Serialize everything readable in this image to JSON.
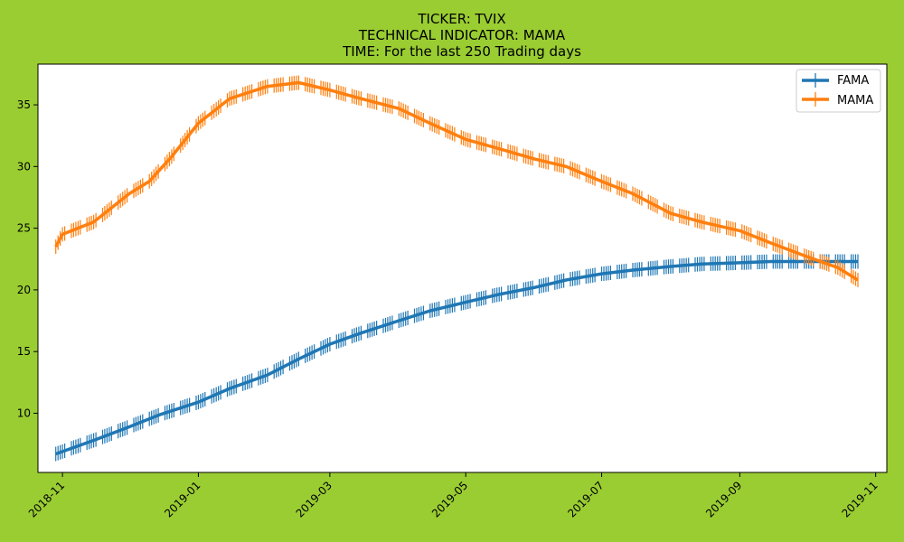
{
  "page": {
    "background": "#9acd32"
  },
  "chart_data": {
    "type": "line",
    "title_lines": [
      "TICKER:  TVIX",
      "TECHNICAL INDICATOR:  MAMA",
      "TIME: For the last 250 Trading days"
    ],
    "xlabel": "",
    "ylabel": "",
    "x_range": [
      "2018-10-21",
      "2019-11-06"
    ],
    "y_range": [
      5.2,
      38.3
    ],
    "y_ticks": [
      10,
      15,
      20,
      25,
      30,
      35
    ],
    "x_ticks": [
      "2018-11",
      "2019-01",
      "2019-03",
      "2019-05",
      "2019-07",
      "2019-09",
      "2019-11"
    ],
    "x_tick_dates": [
      "2018-11-01",
      "2019-01-01",
      "2019-03-01",
      "2019-05-01",
      "2019-07-01",
      "2019-09-01",
      "2019-11-01"
    ],
    "grid": false,
    "legend_position": "top-right",
    "marker": "vertical-line",
    "series": [
      {
        "name": "FAMA",
        "color": "#1f77b4",
        "points": [
          [
            "2018-10-29",
            6.7
          ],
          [
            "2018-11-15",
            7.8
          ],
          [
            "2018-12-01",
            8.9
          ],
          [
            "2018-12-15",
            9.9
          ],
          [
            "2019-01-01",
            10.9
          ],
          [
            "2019-01-15",
            12.0
          ],
          [
            "2019-02-01",
            13.1
          ],
          [
            "2019-02-15",
            14.4
          ],
          [
            "2019-03-01",
            15.6
          ],
          [
            "2019-03-15",
            16.5
          ],
          [
            "2019-04-01",
            17.5
          ],
          [
            "2019-04-15",
            18.3
          ],
          [
            "2019-05-01",
            19.0
          ],
          [
            "2019-05-15",
            19.6
          ],
          [
            "2019-06-01",
            20.2
          ],
          [
            "2019-06-15",
            20.8
          ],
          [
            "2019-07-01",
            21.3
          ],
          [
            "2019-07-15",
            21.6
          ],
          [
            "2019-08-01",
            21.9
          ],
          [
            "2019-08-15",
            22.1
          ],
          [
            "2019-09-01",
            22.2
          ],
          [
            "2019-09-15",
            22.3
          ],
          [
            "2019-10-01",
            22.3
          ],
          [
            "2019-10-24",
            22.3
          ]
        ]
      },
      {
        "name": "MAMA",
        "color": "#ff7f0e",
        "points": [
          [
            "2018-10-29",
            23.5
          ],
          [
            "2018-11-01",
            24.5
          ],
          [
            "2018-11-15",
            25.5
          ],
          [
            "2018-12-01",
            27.8
          ],
          [
            "2018-12-10",
            28.8
          ],
          [
            "2018-12-20",
            30.8
          ],
          [
            "2019-01-01",
            33.5
          ],
          [
            "2019-01-15",
            35.5
          ],
          [
            "2019-02-01",
            36.5
          ],
          [
            "2019-02-15",
            36.8
          ],
          [
            "2019-03-01",
            36.2
          ],
          [
            "2019-03-15",
            35.5
          ],
          [
            "2019-04-01",
            34.7
          ],
          [
            "2019-04-15",
            33.5
          ],
          [
            "2019-05-01",
            32.2
          ],
          [
            "2019-05-15",
            31.5
          ],
          [
            "2019-06-01",
            30.6
          ],
          [
            "2019-06-15",
            30.0
          ],
          [
            "2019-07-01",
            28.8
          ],
          [
            "2019-07-15",
            27.8
          ],
          [
            "2019-08-01",
            26.2
          ],
          [
            "2019-08-15",
            25.5
          ],
          [
            "2019-09-01",
            24.8
          ],
          [
            "2019-09-15",
            23.8
          ],
          [
            "2019-10-01",
            22.7
          ],
          [
            "2019-10-15",
            21.8
          ],
          [
            "2019-10-24",
            20.8
          ]
        ]
      }
    ]
  }
}
